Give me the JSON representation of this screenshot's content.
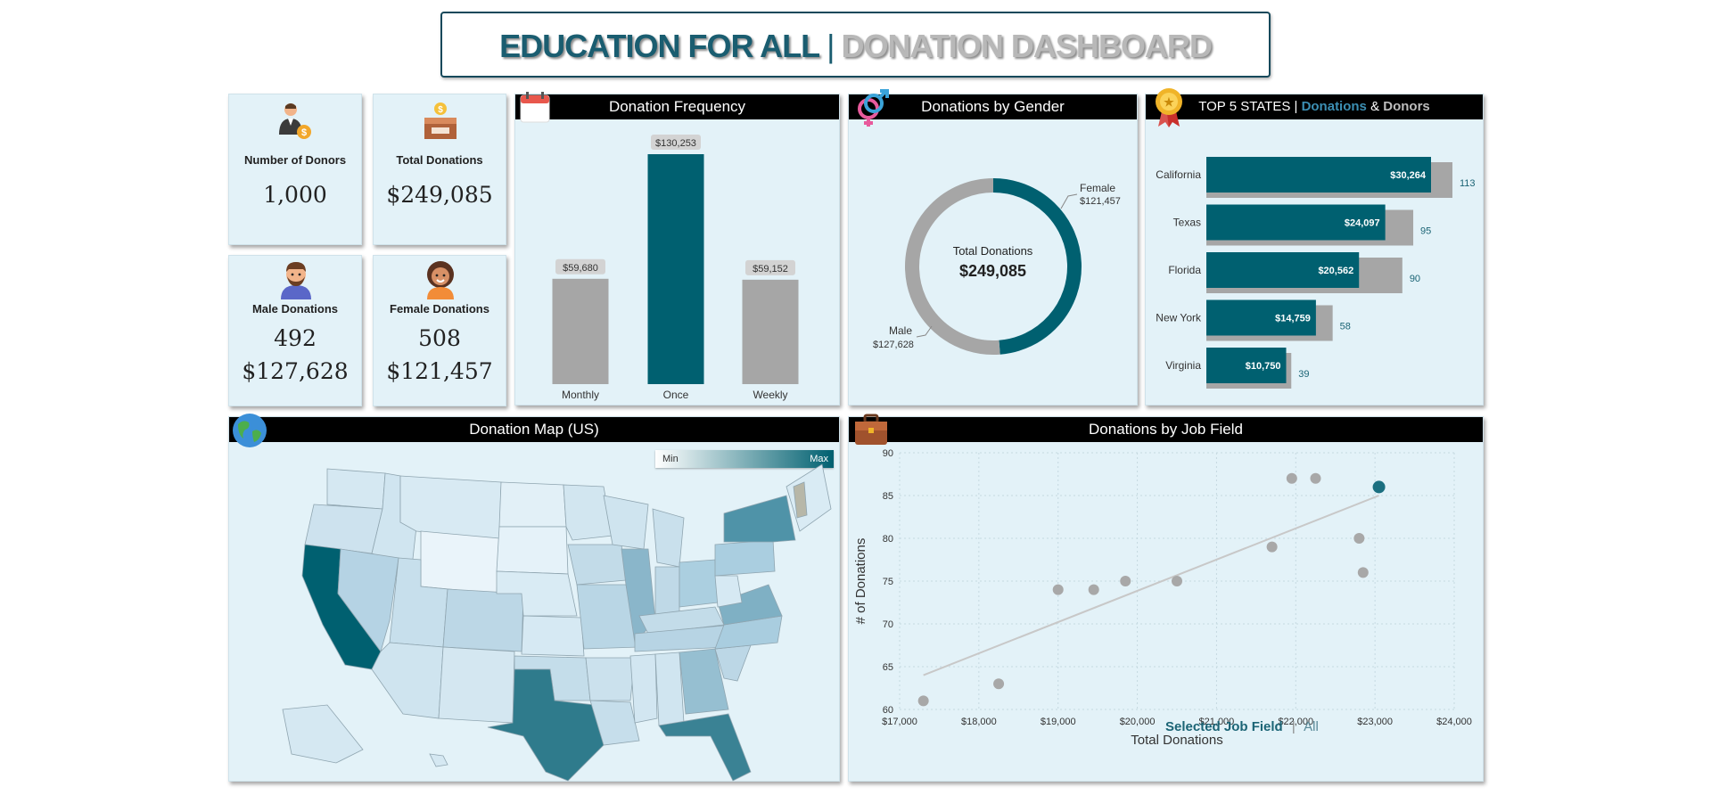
{
  "header": {
    "title_main": "EDUCATION FOR ALL",
    "title_sep": "|",
    "title_sub": "DONATION DASHBOARD"
  },
  "kpis": {
    "donors": {
      "label": "Number of Donors",
      "value": "1,000"
    },
    "total": {
      "label": "Total Donations",
      "value": "$249,085"
    },
    "male": {
      "label": "Male Donations",
      "count": "492",
      "amount": "$127,628"
    },
    "female": {
      "label": "Female Donations",
      "count": "508",
      "amount": "$121,457"
    }
  },
  "frequency": {
    "title": "Donation Frequency",
    "chart_data": {
      "type": "bar",
      "categories": [
        "Monthly",
        "Once",
        "Weekly"
      ],
      "values": [
        59680,
        130253,
        59152
      ],
      "labels": [
        "$59,680",
        "$130,253",
        "$59,152"
      ],
      "highlight": "Once"
    }
  },
  "gender": {
    "title": "Donations by Gender",
    "center_label": "Total Donations",
    "center_value": "$249,085",
    "chart_data": {
      "type": "pie",
      "variant": "donut",
      "categories": [
        "Female",
        "Male"
      ],
      "values": [
        121457,
        127628
      ],
      "labels": [
        "$121,457",
        "$127,628"
      ]
    }
  },
  "states": {
    "title_prefix": "TOP 5 STATES |",
    "title_don": "Donations",
    "title_amp": "&",
    "title_donors": "Donors",
    "chart_data": {
      "type": "bar",
      "orientation": "horizontal",
      "categories": [
        "California",
        "Texas",
        "Florida",
        "New York",
        "Virginia"
      ],
      "series": [
        {
          "name": "Donations",
          "values": [
            30264,
            24097,
            20562,
            14759,
            10750
          ],
          "labels": [
            "$30,264",
            "$24,097",
            "$20,562",
            "$14,759",
            "$10,750"
          ]
        },
        {
          "name": "Donors",
          "values": [
            113,
            95,
            90,
            58,
            39
          ]
        }
      ]
    }
  },
  "map": {
    "title": "Donation Map (US)",
    "legend_min": "Min",
    "legend_max": "Max"
  },
  "job": {
    "title": "Donations by Job Field",
    "legend_selected": "Selected Job Field",
    "legend_sep": "|",
    "legend_all": "All",
    "chart_data": {
      "type": "scatter",
      "xlabel": "Total Donations",
      "ylabel": "# of Donations",
      "xlim": [
        17000,
        24000
      ],
      "ylim": [
        60,
        90
      ],
      "xticks": [
        "$17,000",
        "$18,000",
        "$19,000",
        "$20,000",
        "$21,000",
        "$22,000",
        "$23,000",
        "$24,000"
      ],
      "yticks": [
        "60",
        "65",
        "70",
        "75",
        "80",
        "85",
        "90"
      ],
      "points": [
        {
          "x": 17300,
          "y": 61
        },
        {
          "x": 18250,
          "y": 63
        },
        {
          "x": 19000,
          "y": 74
        },
        {
          "x": 19450,
          "y": 74
        },
        {
          "x": 19850,
          "y": 75
        },
        {
          "x": 20500,
          "y": 75
        },
        {
          "x": 21700,
          "y": 79
        },
        {
          "x": 21950,
          "y": 87
        },
        {
          "x": 22250,
          "y": 87
        },
        {
          "x": 22800,
          "y": 80
        },
        {
          "x": 22850,
          "y": 76
        },
        {
          "x": 23050,
          "y": 86,
          "selected": true
        }
      ],
      "trendline": [
        [
          17300,
          64
        ],
        [
          23050,
          85
        ]
      ],
      "grid": true
    }
  },
  "colors": {
    "teal": "#006070",
    "gray": "#a6a6a6",
    "panel_bg": "#e3f2f8",
    "header_bg": "#000000",
    "accent_light": "#5ea8c3"
  }
}
